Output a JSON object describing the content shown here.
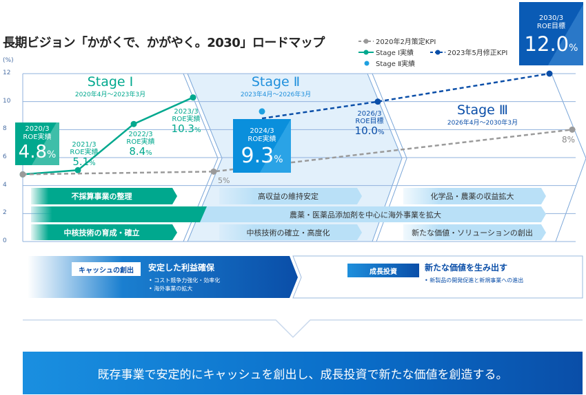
{
  "title": "長期ビジョン「かがくで、かがやく。2030」ロードマップ",
  "legend": {
    "old_kpi": "2020年2月策定KPI",
    "stage1_actual": "Stage Ⅰ実績",
    "revised_kpi": "2023年5月修正KPI",
    "stage2_actual": "Stage Ⅱ実績"
  },
  "colors": {
    "green": "#00a88e",
    "blue": "#0a5bb5",
    "light_blue": "#1ea0e0",
    "gray": "#9a9a9a",
    "panel": "#e2f0fb",
    "bar_light": "#b9e0f7"
  },
  "chart_data": {
    "type": "line",
    "ylabel": "(%)",
    "ylim": [
      0,
      12
    ],
    "yticks": [
      "0",
      "2",
      "4",
      "6",
      "8",
      "10",
      "12"
    ],
    "grid": true,
    "series": [
      {
        "name": "Stage Ⅰ実績",
        "x": [
          "2020/3",
          "2021/3",
          "2022/3",
          "2023/3"
        ],
        "values": [
          4.8,
          5.1,
          8.4,
          10.3
        ]
      },
      {
        "name": "2020年2月策定KPI",
        "x": [
          "2020/3",
          "2023/3",
          "2030/3"
        ],
        "values": [
          4.8,
          5,
          8
        ]
      },
      {
        "name": "2023年5月修正KPI",
        "x": [
          "2024/3",
          "2026/3",
          "2030/3"
        ],
        "values": [
          8.8,
          10.0,
          12.0
        ]
      },
      {
        "name": "Stage Ⅱ実績",
        "x": [
          "2024/3"
        ],
        "values": [
          9.3
        ]
      }
    ],
    "annotations": {
      "a2020": {
        "date": "2020/3",
        "kind": "ROE実績",
        "value": "4.8",
        "unit": "%"
      },
      "a2021": {
        "date": "2021/3",
        "kind": "ROE実績",
        "value": "5.1",
        "unit": "%"
      },
      "a2022": {
        "date": "2022/3",
        "kind": "ROE実績",
        "value": "8.4",
        "unit": "%"
      },
      "a2023": {
        "date": "2023/3",
        "kind": "ROE実績",
        "value": "10.3",
        "unit": "%"
      },
      "a2024": {
        "date": "2024/3",
        "kind": "ROE実績",
        "value": "9.3",
        "unit": "%"
      },
      "a2026": {
        "date": "2026/3",
        "kind": "ROE目標",
        "value": "10.0",
        "unit": "%"
      },
      "a2030": {
        "date": "2030/3",
        "kind": "ROE目標",
        "value": "12.0",
        "unit": "%"
      },
      "old5": "5%",
      "old8": "8%"
    }
  },
  "stages": [
    {
      "name": "Stage Ⅰ",
      "period": "2020年4月～2023年3月"
    },
    {
      "name": "Stage Ⅱ",
      "period": "2023年4月～2026年3月"
    },
    {
      "name": "Stage Ⅲ",
      "period": "2026年4月～2030年3月"
    }
  ],
  "initiatives": {
    "s1_row1": "不採算事業の整理",
    "s1_row3": "中核技術の育成・確立",
    "s2_row1": "高収益の維持安定",
    "s2_row3": "中核技術の確立・高度化",
    "s3_row1": "化学品・農薬の収益拡大",
    "s3_row3": "新たな価値・ソリューションの創出",
    "row2": "農薬・医薬品添加剤を中心に海外事業を拡大"
  },
  "cash": {
    "tag": "キャッシュの創出",
    "head": "安定した利益確保",
    "bullets": [
      "• コスト競争力強化・効率化",
      "• 海外事業の拡大"
    ]
  },
  "growth": {
    "tag": "成長投資",
    "head": "新たな価値を生み出す",
    "bullets": [
      "• 新製品の開発促進と新規事業への進出"
    ]
  },
  "banner": "既存事業で安定的にキャッシュを創出し、成長投資で新たな価値を創造する。"
}
